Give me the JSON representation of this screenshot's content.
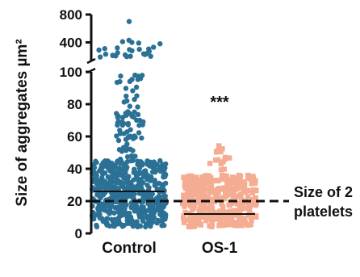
{
  "chart_data": {
    "type": "scatter",
    "subtype": "dot-plot with broken y-axis",
    "title": "",
    "ylabel": "Size of aggregates µm²",
    "y_scale": "broken",
    "y_lower_range": [
      0,
      100
    ],
    "y_upper_range": [
      0,
      800
    ],
    "y_ticks_lower": [
      "0",
      "20",
      "40",
      "60",
      "80",
      "100"
    ],
    "y_ticks_upper": [
      "400",
      "800"
    ],
    "categories": [
      "Control",
      "OS-1"
    ],
    "series": [
      {
        "name": "Control",
        "color": "#2b7196",
        "marker": "circle",
        "median": 26,
        "upper_values": [
          700,
          430,
          410,
          400,
          390,
          380,
          330,
          320,
          310,
          305,
          300,
          295,
          290,
          280,
          270,
          250,
          240,
          235,
          230,
          225,
          220,
          215,
          210,
          205,
          200,
          200,
          195,
          190
        ],
        "distribution": [
          {
            "range": [
              4,
              45
            ],
            "count": 520
          },
          {
            "range": [
              45,
              56
            ],
            "count": 14
          },
          {
            "range": [
              56,
              62
            ],
            "count": 12
          },
          {
            "range": [
              62,
              66
            ],
            "count": 4
          },
          {
            "range": [
              66,
              76
            ],
            "count": 26
          },
          {
            "range": [
              78,
              92
            ],
            "count": 10
          },
          {
            "range": [
              93,
              98
            ],
            "count": 10
          }
        ]
      },
      {
        "name": "OS-1",
        "color": "#f4ac92",
        "marker": "square",
        "median": 12,
        "distribution": [
          {
            "range": [
              4,
              36
            ],
            "count": 380
          },
          {
            "range": [
              36,
              48
            ],
            "count": 10
          },
          {
            "range": [
              48,
              56
            ],
            "count": 5
          }
        ]
      }
    ],
    "reference_line": {
      "value": 20,
      "style": "dashed",
      "label_lines": [
        "Size of 2",
        "platelets"
      ]
    },
    "annotations": [
      {
        "text": "***",
        "category": "OS-1",
        "y": 80
      }
    ]
  }
}
